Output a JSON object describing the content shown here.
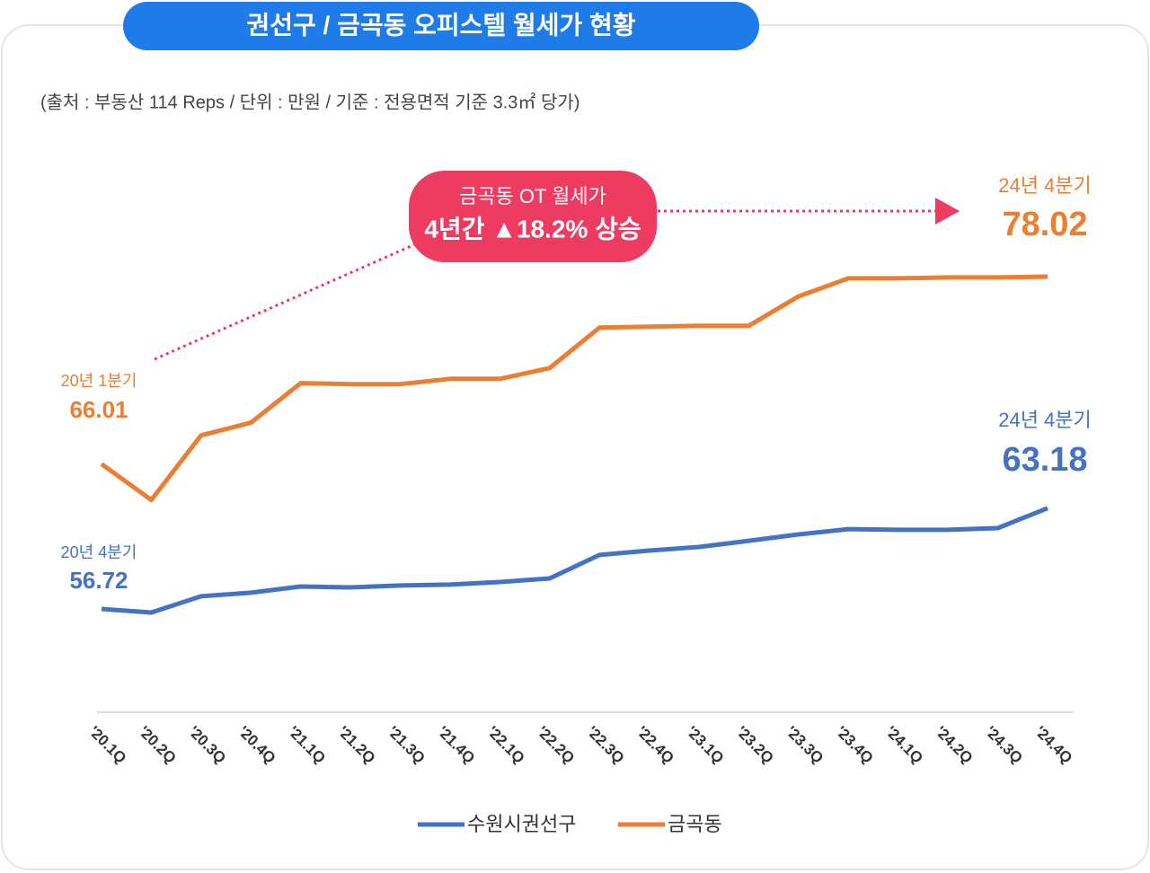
{
  "chart_data": {
    "type": "line",
    "title": "권선구 / 금곡동 오피스텔 월세가 현황",
    "subtitle": "(출처 : 부동산 114 Reps / 단위 : 만원 / 기준 : 전용면적 기준 3.3㎡ 당가)",
    "categories": [
      "'20.1Q",
      "'20.2Q",
      "'20.3Q",
      "'20.4Q",
      "'21.1Q",
      "'21.2Q",
      "'21.3Q",
      "'21.4Q",
      "'22.1Q",
      "'22.2Q",
      "'22.3Q",
      "'22.4Q",
      "'23.1Q",
      "'23.2Q",
      "'23.3Q",
      "'23.4Q",
      "'24.1Q",
      "'24.2Q",
      "'24.3Q",
      "'24.4Q"
    ],
    "series": [
      {
        "name": "수원시권선구",
        "color": "#4472c4",
        "values": [
          56.72,
          56.49,
          57.53,
          57.76,
          58.16,
          58.1,
          58.22,
          58.28,
          58.45,
          58.68,
          60.18,
          60.46,
          60.69,
          61.09,
          61.5,
          61.84,
          61.79,
          61.79,
          61.9,
          63.18
        ]
      },
      {
        "name": "금곡동",
        "color": "#ed7d31",
        "values": [
          66.01,
          63.71,
          67.85,
          68.66,
          71.19,
          71.13,
          71.13,
          71.47,
          71.47,
          72.16,
          74.75,
          74.81,
          74.87,
          74.87,
          76.76,
          77.91,
          77.91,
          77.97,
          77.97,
          78.02
        ]
      }
    ],
    "annotations": {
      "orange_start": "20년 1분기",
      "orange_end": "24년 4분기",
      "blue_start": "20년 4분기",
      "blue_end": "24년 4분기",
      "callout_line1": "금곡동 OT 월세가",
      "callout_line2": "4년간 ▲18.2% 상승"
    }
  }
}
